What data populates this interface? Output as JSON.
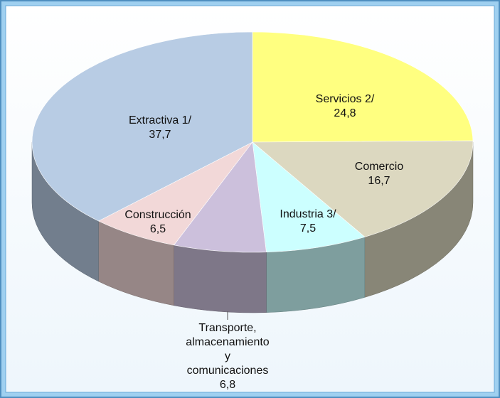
{
  "chart_data": {
    "type": "pie3d",
    "categories": [
      "Servicios 2/",
      "Comercio",
      "Industria 3/",
      "Transporte, almacenamiento y comunicaciones",
      "Construcción",
      "Extractiva 1/"
    ],
    "values": [
      24.8,
      16.7,
      7.5,
      6.8,
      6.5,
      37.7
    ],
    "value_labels": [
      "24,8",
      "16,7",
      "7,5",
      "6,8",
      "6,5",
      "37,7"
    ],
    "colors": [
      "#ffff80",
      "#dcd8c0",
      "#ccffff",
      "#ccc0dc",
      "#f2d8d8",
      "#b8cce4"
    ],
    "start_angle": 0,
    "direction": "clockwise"
  }
}
